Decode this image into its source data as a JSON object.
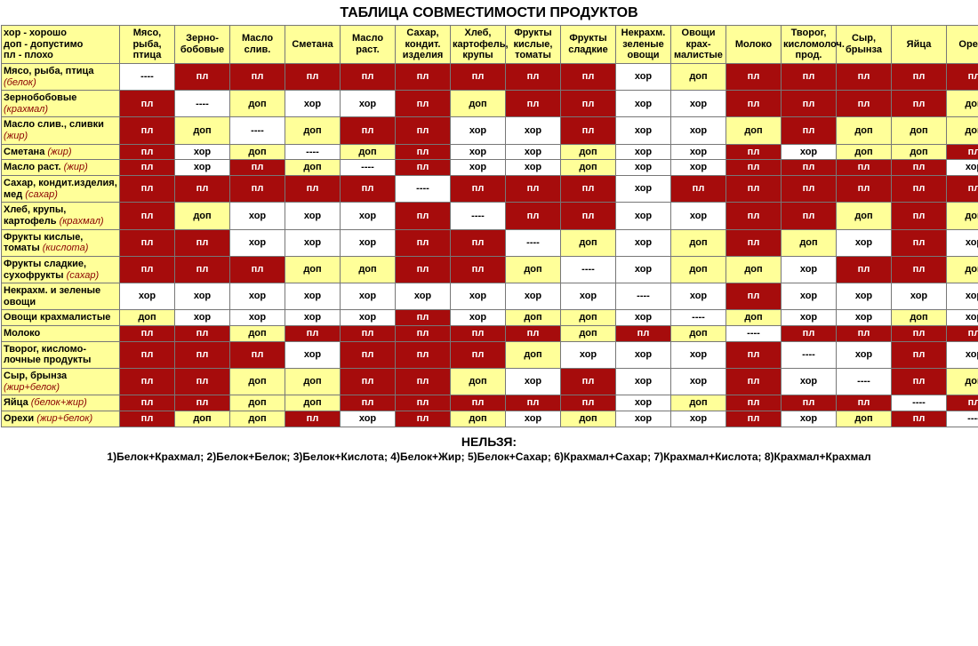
{
  "title": "ТАБЛИЦА СОВМЕСТИМОСТИ ПРОДУКТОВ",
  "legend": {
    "good": "хор - хорошо",
    "ok": "доп - допустимо",
    "bad": "пл - плохо"
  },
  "labels": {
    "bad": "пл",
    "ok": "доп",
    "good": "хор",
    "self": "----"
  },
  "colors": {
    "bad_bg": "#a60c0c",
    "bad_fg": "#ffffff",
    "ok_bg": "#ffff99",
    "good_bg": "#ffffff",
    "border": "#777777",
    "accent_text": "#8a0000"
  },
  "columns": [
    "Мясо, рыба, птица",
    "Зерно-бобовые",
    "Масло слив.",
    "Сметана",
    "Масло раст.",
    "Сахар, кондит. изделия",
    "Хлеб, картофель, крупы",
    "Фрукты кислые, томаты",
    "Фрукты сладкие",
    "Некрахм. зеленые овощи",
    "Овощи крах-малистые",
    "Молоко",
    "Творог, кисломолоч. прод.",
    "Сыр, брынза",
    "Яйца",
    "Орехи"
  ],
  "rows": [
    {
      "label": "Мясо, рыба, птица",
      "sub": "(белок)",
      "cells": [
        "self",
        "bad",
        "bad",
        "bad",
        "bad",
        "bad",
        "bad",
        "bad",
        "bad",
        "good",
        "ok",
        "bad",
        "bad",
        "bad",
        "bad",
        "bad"
      ]
    },
    {
      "label": "Зернобобовые",
      "sub": "(крахмал)",
      "cells": [
        "bad",
        "self",
        "ok",
        "good",
        "good",
        "bad",
        "ok",
        "bad",
        "bad",
        "good",
        "good",
        "bad",
        "bad",
        "bad",
        "bad",
        "ok"
      ]
    },
    {
      "label": "Масло слив., сливки",
      "sub": "(жир)",
      "cells": [
        "bad",
        "ok",
        "self",
        "ok",
        "bad",
        "bad",
        "good",
        "good",
        "bad",
        "good",
        "good",
        "ok",
        "bad",
        "ok",
        "ok",
        "ok"
      ]
    },
    {
      "label": "Сметана",
      "sub": "(жир)",
      "cells": [
        "bad",
        "good",
        "ok",
        "self",
        "ok",
        "bad",
        "good",
        "good",
        "ok",
        "good",
        "good",
        "bad",
        "good",
        "ok",
        "ok",
        "bad"
      ]
    },
    {
      "label": "Масло раст.",
      "sub": "(жир)",
      "cells": [
        "bad",
        "good",
        "bad",
        "ok",
        "self",
        "bad",
        "good",
        "good",
        "ok",
        "good",
        "good",
        "bad",
        "bad",
        "bad",
        "bad",
        "good"
      ]
    },
    {
      "label": "Сахар, кондит.изделия, мед",
      "sub": "(сахар)",
      "cells": [
        "bad",
        "bad",
        "bad",
        "bad",
        "bad",
        "self",
        "bad",
        "bad",
        "bad",
        "good",
        "bad",
        "bad",
        "bad",
        "bad",
        "bad",
        "bad"
      ]
    },
    {
      "label": "Хлеб, крупы, картофель",
      "sub": "(крахмал)",
      "cells": [
        "bad",
        "ok",
        "good",
        "good",
        "good",
        "bad",
        "self",
        "bad",
        "bad",
        "good",
        "good",
        "bad",
        "bad",
        "ok",
        "bad",
        "ok"
      ]
    },
    {
      "label": "Фрукты кислые, томаты",
      "sub": "(кислота)",
      "cells": [
        "bad",
        "bad",
        "good",
        "good",
        "good",
        "bad",
        "bad",
        "self",
        "ok",
        "good",
        "ok",
        "bad",
        "ok",
        "good",
        "bad",
        "good"
      ]
    },
    {
      "label": "Фрукты сладкие, сухофрукты",
      "sub": "(сахар)",
      "cells": [
        "bad",
        "bad",
        "bad",
        "ok",
        "ok",
        "bad",
        "bad",
        "ok",
        "self",
        "good",
        "ok",
        "ok",
        "good",
        "bad",
        "bad",
        "ok"
      ]
    },
    {
      "label": "Некрахм. и зеленые овощи",
      "sub": "",
      "cells": [
        "good",
        "good",
        "good",
        "good",
        "good",
        "good",
        "good",
        "good",
        "good",
        "self",
        "good",
        "bad",
        "good",
        "good",
        "good",
        "good"
      ]
    },
    {
      "label": "Овощи крахмалистые",
      "sub": "",
      "cells": [
        "ok",
        "good",
        "good",
        "good",
        "good",
        "bad",
        "good",
        "ok",
        "ok",
        "good",
        "self",
        "ok",
        "good",
        "good",
        "ok",
        "good"
      ]
    },
    {
      "label": "Молоко",
      "sub": "",
      "cells": [
        "bad",
        "bad",
        "ok",
        "bad",
        "bad",
        "bad",
        "bad",
        "bad",
        "ok",
        "bad",
        "ok",
        "self",
        "bad",
        "bad",
        "bad",
        "bad"
      ]
    },
    {
      "label": "Творог, кисломо-лочные продукты",
      "sub": "",
      "cells": [
        "bad",
        "bad",
        "bad",
        "good",
        "bad",
        "bad",
        "bad",
        "ok",
        "good",
        "good",
        "good",
        "bad",
        "self",
        "good",
        "bad",
        "good"
      ]
    },
    {
      "label": "Сыр, брынза",
      "sub": "(жир+белок)",
      "cells": [
        "bad",
        "bad",
        "ok",
        "ok",
        "bad",
        "bad",
        "ok",
        "good",
        "bad",
        "good",
        "good",
        "bad",
        "good",
        "self",
        "bad",
        "ok"
      ]
    },
    {
      "label": "Яйца",
      "sub": "(белок+жир)",
      "cells": [
        "bad",
        "bad",
        "ok",
        "ok",
        "bad",
        "bad",
        "bad",
        "bad",
        "bad",
        "good",
        "ok",
        "bad",
        "bad",
        "bad",
        "self",
        "bad"
      ]
    },
    {
      "label": "Орехи",
      "sub": "(жир+белок)",
      "cells": [
        "bad",
        "ok",
        "ok",
        "bad",
        "good",
        "bad",
        "ok",
        "good",
        "ok",
        "good",
        "good",
        "bad",
        "good",
        "ok",
        "bad",
        "self"
      ]
    }
  ],
  "footer": {
    "heading": "НЕЛЬЗЯ:",
    "line": "1)Белок+Крахмал; 2)Белок+Белок; 3)Белок+Кислота; 4)Белок+Жир; 5)Белок+Сахар; 6)Крахмал+Сахар; 7)Крахмал+Кислота; 8)Крахмал+Крахмал"
  }
}
